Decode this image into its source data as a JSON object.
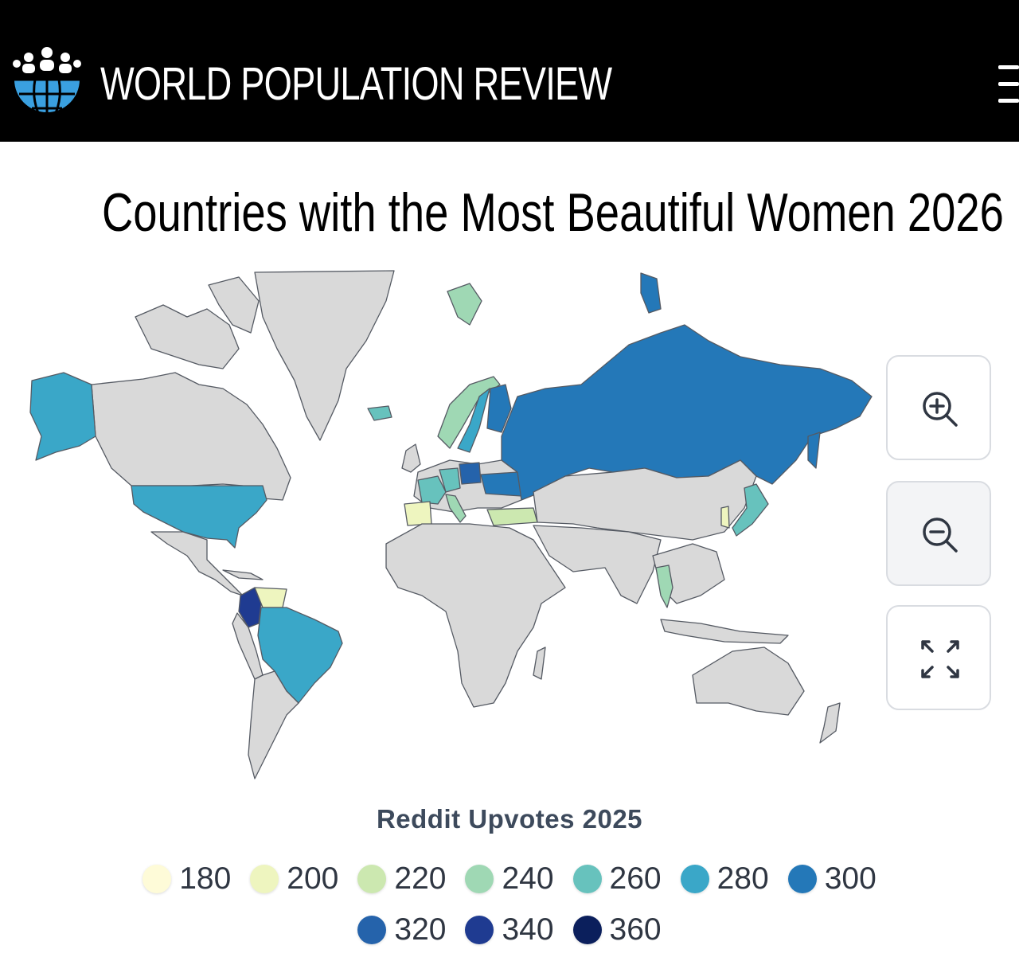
{
  "header": {
    "brand": "WORLD POPULATION REVIEW",
    "logo_icon": "globe-people-icon",
    "menu_icon": "hamburger-menu-icon"
  },
  "page": {
    "title": "Countries with the Most Beautiful Women 2026"
  },
  "controls": {
    "zoom_in_icon": "zoom-in-icon",
    "zoom_out_icon": "zoom-out-icon",
    "fullscreen_icon": "expand-icon"
  },
  "colors": {
    "land_default": "#d9d9d9",
    "border": "#555a63",
    "scale": [
      "#fefbd8",
      "#eef5bf",
      "#cce8b0",
      "#9fd8b4",
      "#67c2bd",
      "#3aa7c8",
      "#2478b8",
      "#2563ab",
      "#1f3b91",
      "#0b1f5c"
    ]
  },
  "map": {
    "countries": [
      {
        "name": "United States",
        "value": 280
      },
      {
        "name": "Alaska",
        "value": 280
      },
      {
        "name": "Brazil",
        "value": 280
      },
      {
        "name": "Colombia",
        "value": 340
      },
      {
        "name": "Venezuela",
        "value": 200
      },
      {
        "name": "Russia",
        "value": 300
      },
      {
        "name": "Poland",
        "value": 320
      },
      {
        "name": "Ukraine",
        "value": 300
      },
      {
        "name": "Sweden",
        "value": 280
      },
      {
        "name": "Norway",
        "value": 240
      },
      {
        "name": "Svalbard",
        "value": 240
      },
      {
        "name": "Finland",
        "value": 300
      },
      {
        "name": "Iceland",
        "value": 260
      },
      {
        "name": "Germany",
        "value": 260
      },
      {
        "name": "France",
        "value": 260
      },
      {
        "name": "Italy",
        "value": 240
      },
      {
        "name": "Spain",
        "value": 200
      },
      {
        "name": "Turkey",
        "value": 220
      },
      {
        "name": "Japan",
        "value": 260
      },
      {
        "name": "South Korea",
        "value": 200
      },
      {
        "name": "Thailand",
        "value": 240
      }
    ]
  },
  "legend": {
    "title": "Reddit Upvotes 2025",
    "items": [
      {
        "label": "180",
        "color": "#fefbd8"
      },
      {
        "label": "200",
        "color": "#eef5bf"
      },
      {
        "label": "220",
        "color": "#cce8b0"
      },
      {
        "label": "240",
        "color": "#9fd8b4"
      },
      {
        "label": "260",
        "color": "#67c2bd"
      },
      {
        "label": "280",
        "color": "#3aa7c8"
      },
      {
        "label": "300",
        "color": "#2478b8"
      },
      {
        "label": "320",
        "color": "#2563ab"
      },
      {
        "label": "340",
        "color": "#1f3b91"
      },
      {
        "label": "360",
        "color": "#0b1f5c"
      }
    ]
  }
}
